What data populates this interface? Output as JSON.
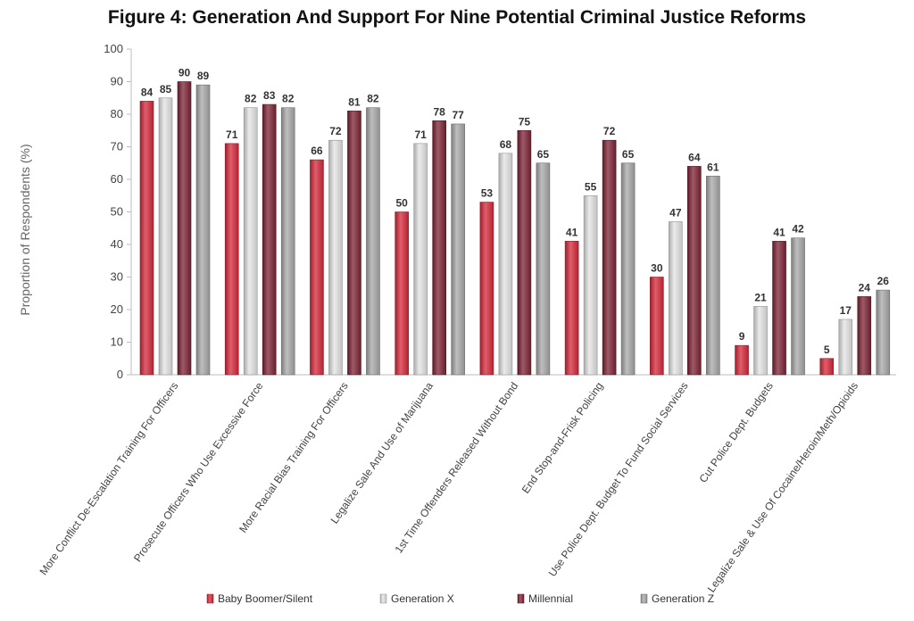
{
  "chart_data": {
    "type": "bar",
    "title": "Figure 4: Generation And Support For Nine Potential Criminal Justice Reforms",
    "xlabel": "",
    "ylabel": "Proportion of Respondents (%)",
    "ylim": [
      0,
      100
    ],
    "yticks": [
      0,
      10,
      20,
      30,
      40,
      50,
      60,
      70,
      80,
      90,
      100
    ],
    "grid": false,
    "legend_position": "bottom",
    "categories": [
      "More Conflict De-Escalation Training For Officers",
      "Prosecute Officers Who Use Excessive Force",
      "More Racial Bias Training For Officers",
      "Legalize Sale And Use of Marijuana",
      "1st Time Offenders Released Without Bond",
      "End Stop-and-Frisk Policing",
      "Use Police Dept. Budget To Fund Social Services",
      "Cut Police Dept. Budgets",
      "Legalize Sale & Use Of Cocaine/Heroin/Meth/Opioids"
    ],
    "series": [
      {
        "name": "Baby Boomer/Silent",
        "color": "#d6283a",
        "values": [
          84,
          71,
          66,
          50,
          53,
          41,
          30,
          9,
          5
        ]
      },
      {
        "name": "Generation X",
        "color": "#e4e4e4",
        "values": [
          85,
          82,
          72,
          71,
          68,
          55,
          47,
          21,
          17
        ]
      },
      {
        "name": "Millennial",
        "color": "#7d2335",
        "values": [
          90,
          83,
          81,
          78,
          75,
          72,
          64,
          41,
          24
        ]
      },
      {
        "name": "Generation Z",
        "color": "#a8a8a8",
        "values": [
          89,
          82,
          82,
          77,
          65,
          65,
          61,
          42,
          26
        ]
      }
    ]
  }
}
